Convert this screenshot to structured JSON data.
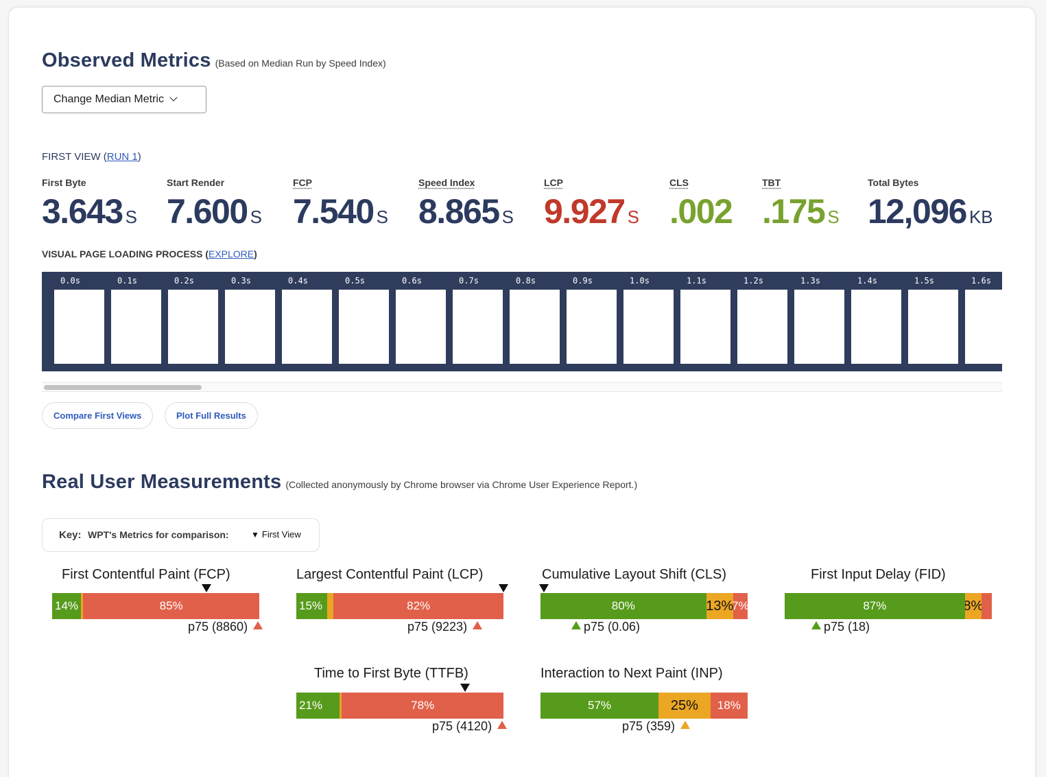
{
  "observed": {
    "title": "Observed Metrics",
    "subtitle": "(Based on Median Run by Speed Index)",
    "median_button": "Change Median Metric",
    "first_view_prefix": "FIRST VIEW (",
    "first_view_link": "RUN 1",
    "first_view_suffix": ")"
  },
  "metrics": [
    {
      "label": "First Byte",
      "value": "3.643",
      "unit": "S",
      "color": "#2b3a5e"
    },
    {
      "label": "Start Render",
      "value": "7.600",
      "unit": "S",
      "color": "#2b3a5e"
    },
    {
      "label": "FCP",
      "value": "7.540",
      "unit": "S",
      "color": "#2b3a5e"
    },
    {
      "label": "Speed Index",
      "value": "8.865",
      "unit": "S",
      "color": "#2b3a5e"
    },
    {
      "label": "LCP",
      "value": "9.927",
      "unit": "S",
      "color": "#c0392b"
    },
    {
      "label": "CLS",
      "value": ".002",
      "unit": "",
      "color": "#78a22f"
    },
    {
      "label": "TBT",
      "value": ".175",
      "unit": "S",
      "color": "#78a22f"
    },
    {
      "label": "Total Bytes",
      "value": "12,096",
      "unit": "KB",
      "color": "#2b3a5e"
    }
  ],
  "visual": {
    "title": "VISUAL PAGE LOADING PROCESS",
    "paren_open": "(",
    "link": "EXPLORE",
    "paren_close": ")",
    "frames": [
      "0.0s",
      "0.1s",
      "0.2s",
      "0.3s",
      "0.4s",
      "0.5s",
      "0.6s",
      "0.7s",
      "0.8s",
      "0.9s",
      "1.0s",
      "1.1s",
      "1.2s",
      "1.3s",
      "1.4s",
      "1.5s",
      "1.6s"
    ]
  },
  "buttons": {
    "compare": "Compare First Views",
    "plot": "Plot Full Results"
  },
  "rum": {
    "title": "Real User Measurements",
    "subtitle": "(Collected anonymously by Chrome browser via Chrome User Experience Report.)",
    "key_label": "Key:",
    "key_desc": "WPT's Metrics for comparison:",
    "key_first_view": "First View",
    "key_triangle": "▼"
  },
  "crux": [
    {
      "title": "First Contentful Paint (FCP)",
      "segments": [
        {
          "cls": "good",
          "pct": 14,
          "label": "14%"
        },
        {
          "cls": "ok",
          "pct": 1,
          "label": ""
        },
        {
          "cls": "poor",
          "pct": 85,
          "label": "85%"
        }
      ],
      "p75": "p75 (8860)",
      "p75_status": "poor"
    },
    {
      "title": "Largest Contentful Paint (LCP)",
      "segments": [
        {
          "cls": "good",
          "pct": 15,
          "label": "15%"
        },
        {
          "cls": "ok",
          "pct": 3,
          "label": ""
        },
        {
          "cls": "poor",
          "pct": 82,
          "label": "82%"
        }
      ],
      "p75": "p75 (9223)",
      "p75_status": "poor"
    },
    {
      "title": "Cumulative Layout Shift (CLS)",
      "segments": [
        {
          "cls": "good",
          "pct": 80,
          "label": "80%"
        },
        {
          "cls": "ok",
          "pct": 13,
          "label": "13%"
        },
        {
          "cls": "poor",
          "pct": 7,
          "label": "7%"
        }
      ],
      "p75": "p75 (0.06)",
      "p75_status": "good"
    },
    {
      "title": "First Input Delay (FID)",
      "segments": [
        {
          "cls": "good",
          "pct": 87,
          "label": "87%"
        },
        {
          "cls": "ok",
          "pct": 8,
          "label": "8%"
        },
        {
          "cls": "poor",
          "pct": 5,
          "label": ""
        }
      ],
      "p75": "p75 (18)",
      "p75_status": "good"
    },
    {
      "title": "Time to First Byte (TTFB)",
      "segments": [
        {
          "cls": "good",
          "pct": 21,
          "label": "21%"
        },
        {
          "cls": "ok",
          "pct": 1,
          "label": ""
        },
        {
          "cls": "poor",
          "pct": 78,
          "label": "78%"
        }
      ],
      "p75": "p75 (4120)",
      "p75_status": "poor"
    },
    {
      "title": "Interaction to Next Paint (INP)",
      "segments": [
        {
          "cls": "good",
          "pct": 57,
          "label": "57%"
        },
        {
          "cls": "ok",
          "pct": 25,
          "label": "25%"
        },
        {
          "cls": "poor",
          "pct": 18,
          "label": "18%"
        }
      ],
      "p75": "p75 (359)",
      "p75_status": "ok"
    }
  ]
}
